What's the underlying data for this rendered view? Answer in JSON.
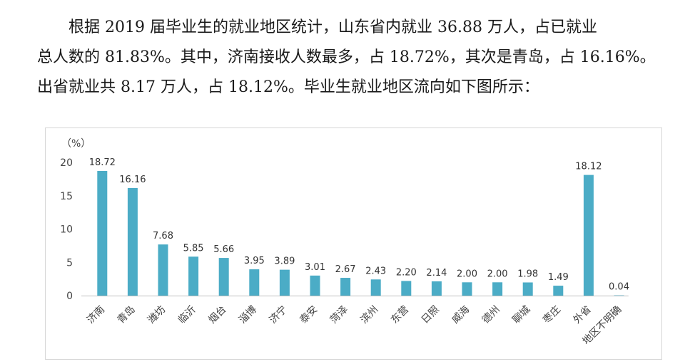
{
  "text": {
    "line1": "根据 2019 届毕业生的就业地区统计，山东省内就业 36.88 万人，占已就业",
    "line2": "总人数的 81.83%。其中，济南接收人数最多，占 18.72%，其次是青岛，占 16.16%。",
    "line3": "出省就业共 8.17 万人，占 18.12%。毕业生就业地区流向如下图所示："
  },
  "chart_data": {
    "type": "bar",
    "unit_label": "（%）",
    "ylim": [
      0,
      20
    ],
    "yticks": [
      0,
      5,
      10,
      15,
      20
    ],
    "grid": false,
    "bar_color": "#4bacc6",
    "categories": [
      "济南",
      "青岛",
      "潍坊",
      "临沂",
      "烟台",
      "淄博",
      "济宁",
      "泰安",
      "菏泽",
      "滨州",
      "东营",
      "日照",
      "威海",
      "德州",
      "聊城",
      "枣庄",
      "外省",
      "地区不明确"
    ],
    "values": [
      18.72,
      16.16,
      7.68,
      5.85,
      5.66,
      3.95,
      3.89,
      3.01,
      2.67,
      2.43,
      2.2,
      2.14,
      2.0,
      2.0,
      1.98,
      1.49,
      18.12,
      0.04
    ],
    "value_labels": [
      "18.72",
      "16.16",
      "7.68",
      "5.85",
      "5.66",
      "3.95",
      "3.89",
      "3.01",
      "2.67",
      "2.43",
      "2.20",
      "2.14",
      "2.00",
      "2.00",
      "1.98",
      "1.49",
      "18.12",
      "0.04"
    ]
  }
}
